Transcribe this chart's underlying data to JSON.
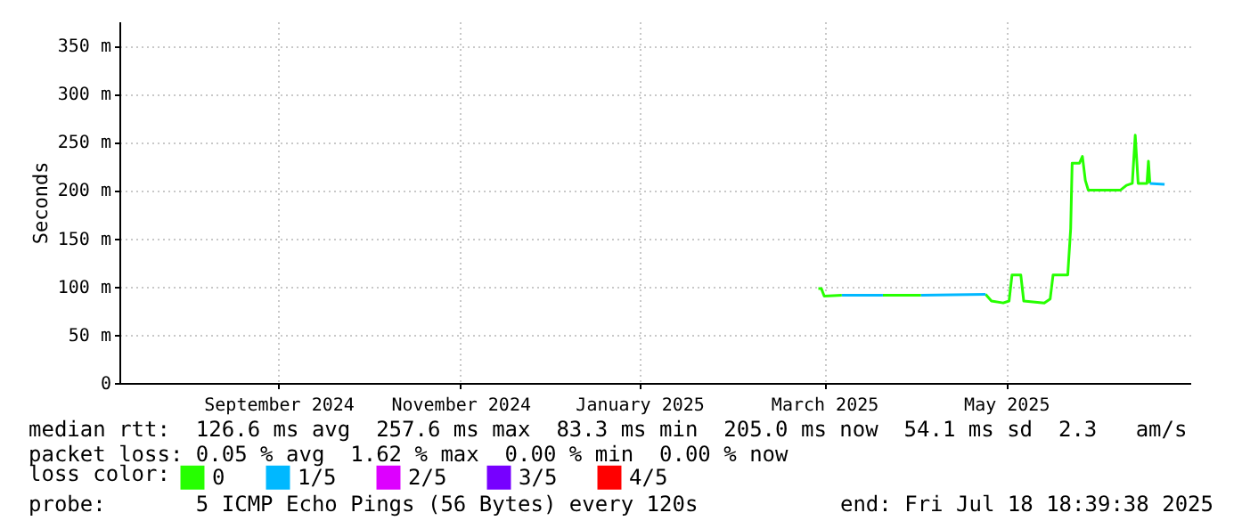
{
  "chart_data": {
    "type": "line",
    "ylabel": "Seconds",
    "legend_title": "loss color:",
    "legend": "bottom left",
    "grid": true,
    "xlim": [
      "2024-07-18T18:39",
      "2025-07-18T18:39"
    ],
    "xticks": [
      {
        "value": "2024-09-11",
        "label": "September 2024"
      },
      {
        "value": "2024-11-12",
        "label": "November 2024"
      },
      {
        "value": "2025-01-12",
        "label": "January 2025"
      },
      {
        "value": "2025-03-16",
        "label": "March 2025"
      },
      {
        "value": "2025-05-17",
        "label": "May 2025"
      }
    ],
    "ylim": [
      0,
      375
    ],
    "yticks": [
      0,
      {
        "value": 50,
        "label": "50 m"
      },
      {
        "value": 100,
        "label": "100 m"
      },
      {
        "value": 150,
        "label": "150 m"
      },
      {
        "value": 200,
        "label": "200 m"
      },
      {
        "value": 250,
        "label": "250 m"
      },
      {
        "value": 300,
        "label": "300 m"
      },
      {
        "value": 350,
        "label": "350 m"
      }
    ],
    "series": [
      {
        "name": "0",
        "color": "#26ff00",
        "x": [
          "2025-03-14",
          "2025-03-15",
          "2025-03-16",
          "2025-03-22",
          "2025-04-01",
          "2025-04-05",
          "2025-04-18",
          "2025-04-22",
          "2025-05-10",
          "2025-05-12",
          "2025-05-16",
          "2025-05-18",
          "2025-05-19",
          "2025-05-22",
          "2025-05-23",
          "2025-05-30",
          "2025-06-01",
          "2025-06-02",
          "2025-06-07",
          "2025-06-08",
          "2025-06-08T12:00",
          "2025-06-11",
          "2025-06-12",
          "2025-06-13",
          "2025-06-14",
          "2025-06-25",
          "2025-06-27",
          "2025-06-29",
          "2025-06-30",
          "2025-07-01",
          "2025-07-04",
          "2025-07-04T12:00",
          "2025-07-05"
        ],
        "values": [
          98,
          98,
          90,
          91,
          null,
          91,
          91,
          null,
          92,
          85,
          83,
          85,
          112,
          112,
          85,
          83,
          87,
          112,
          112,
          160,
          228,
          228,
          235,
          210,
          200,
          200,
          205,
          207,
          257,
          207,
          207,
          230,
          207
        ]
      },
      {
        "name": "1/5",
        "color": "#00b8ff",
        "x": [
          "2025-03-22",
          "2025-04-05",
          "2025-04-10",
          "2025-04-18",
          "2025-05-10",
          "2025-05-20",
          "2025-07-05",
          "2025-07-10"
        ],
        "values": [
          91,
          91,
          null,
          91,
          92,
          null,
          207,
          206
        ]
      },
      {
        "name": "2/5",
        "color": "#dd00ff"
      },
      {
        "name": "3/5",
        "color": "#7700ff"
      },
      {
        "name": "4/5",
        "color": "#ff0000"
      }
    ],
    "annotations": [
      "median rtt:  126.6 ms avg  257.6 ms max  83.3 ms min  205.0 ms now  54.1 ms sd  2.3   am/s",
      "packet loss: 0.05 % avg  1.62 % max  0.00 % min  0.00 % now",
      "probe:       5 ICMP Echo Pings (56 Bytes) every 120s",
      "end: Fri Jul 18 18:39:38 2025"
    ]
  }
}
